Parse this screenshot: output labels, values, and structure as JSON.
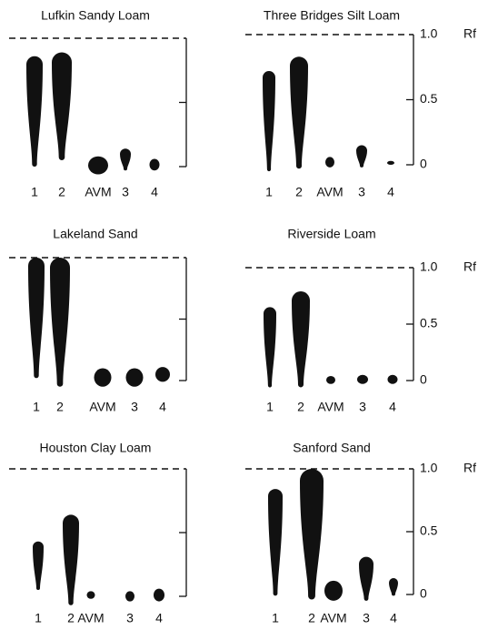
{
  "chart_data": [
    {
      "type": "tlc",
      "title": "Lufkin Sandy Loam",
      "categories": [
        "1",
        "2",
        "AVM",
        "3",
        "4"
      ],
      "low": [
        0,
        0.05,
        -0.06,
        -0.03,
        -0.03
      ],
      "high": [
        0.86,
        0.89,
        0.08,
        0.14,
        0.06
      ],
      "ylim": [
        0,
        1
      ],
      "yticks": [
        0,
        0.5,
        1
      ],
      "tick_labels": false,
      "color": "#111111"
    },
    {
      "type": "tlc",
      "title": "Three Bridges Silt Loam",
      "categories": [
        "1",
        "2",
        "AVM",
        "3",
        "4"
      ],
      "low": [
        -0.05,
        -0.03,
        -0.02,
        -0.02,
        0
      ],
      "high": [
        0.72,
        0.83,
        0.06,
        0.15,
        0.03
      ],
      "ylim": [
        0,
        1
      ],
      "yticks": [
        0,
        0.5,
        {
          "value": 1,
          "label": "1.0"
        }
      ],
      "tick_labels": true,
      "ylabel": "Rf",
      "color": "#111111"
    },
    {
      "type": "tlc",
      "title": "Lakeland Sand",
      "categories": [
        "1",
        "2",
        "AVM",
        "3",
        "4"
      ],
      "low": [
        0.02,
        -0.05,
        -0.05,
        -0.05,
        -0.01
      ],
      "high": [
        1,
        1,
        0.1,
        0.1,
        0.11
      ],
      "ylim": [
        0,
        1
      ],
      "yticks": [
        0,
        0.5,
        1
      ],
      "tick_labels": false,
      "color": "#111111"
    },
    {
      "type": "tlc",
      "title": "Riverside Loam",
      "categories": [
        "1",
        "2",
        "AVM",
        "3",
        "4"
      ],
      "low": [
        -0.06,
        -0.06,
        -0.03,
        -0.03,
        -0.03
      ],
      "high": [
        0.65,
        0.79,
        0.04,
        0.05,
        0.05
      ],
      "ylim": [
        0,
        1
      ],
      "yticks": [
        0,
        0.5,
        {
          "value": 1,
          "label": "1.0"
        }
      ],
      "tick_labels": true,
      "ylabel": "Rf",
      "color": "#111111"
    },
    {
      "type": "tlc",
      "title": "Houston Clay Loam",
      "categories": [
        "1",
        "2",
        "AVM",
        "3",
        "4"
      ],
      "low": [
        0.05,
        -0.07,
        -0.02,
        -0.04,
        -0.04
      ],
      "high": [
        0.43,
        0.64,
        0.04,
        0.04,
        0.06
      ],
      "ylim": [
        0,
        1
      ],
      "yticks": [
        0,
        0.5,
        1
      ],
      "tick_labels": false,
      "color": "#111111"
    },
    {
      "type": "tlc",
      "title": "Sanford Sand",
      "categories": [
        "1",
        "2",
        "AVM",
        "3",
        "4"
      ],
      "low": [
        -0.01,
        -0.04,
        -0.05,
        -0.05,
        -0.01
      ],
      "high": [
        0.84,
        1,
        0.11,
        0.3,
        0.13
      ],
      "ylim": [
        0,
        1
      ],
      "yticks": [
        0,
        0.5,
        {
          "value": 1,
          "label": "1.0"
        }
      ],
      "tick_labels": true,
      "ylabel": "Rf",
      "color": "#111111"
    }
  ]
}
